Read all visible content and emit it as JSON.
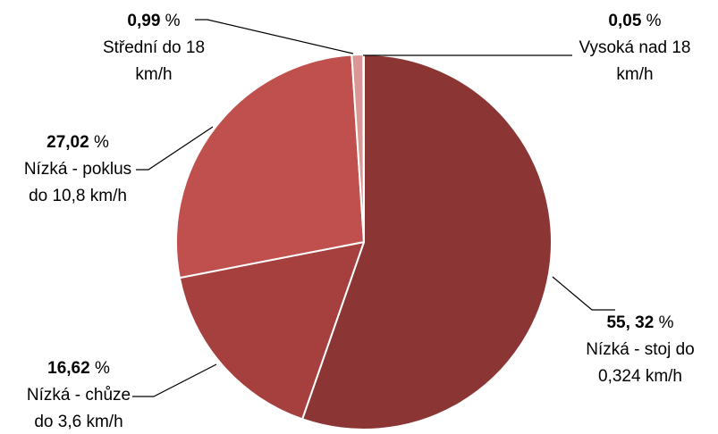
{
  "chart_data": {
    "type": "pie",
    "title": "",
    "slices": [
      {
        "value": 55.32,
        "value_label": "55, 32",
        "unit": " %",
        "label_lines": [
          "Nízká - stoj do",
          "0,324 km/h"
        ],
        "color": "#8b3635"
      },
      {
        "value": 16.62,
        "value_label": "16,62",
        "unit": " %",
        "label_lines": [
          "Nízká - chůze",
          "do 3,6 km/h"
        ],
        "color": "#a6403e"
      },
      {
        "value": 27.02,
        "value_label": "27,02",
        "unit": " %",
        "label_lines": [
          "Nízká - poklus",
          "do 10,8 km/h"
        ],
        "color": "#c0504d"
      },
      {
        "value": 0.99,
        "value_label": "0,99",
        "unit": " %",
        "label_lines": [
          "Střední do 18",
          "km/h"
        ],
        "color": "#d99694"
      },
      {
        "value": 0.05,
        "value_label": "0,05",
        "unit": " %",
        "label_lines": [
          "Vysoká nad 18",
          "km/h"
        ],
        "color": "#e6b9b8"
      }
    ]
  }
}
